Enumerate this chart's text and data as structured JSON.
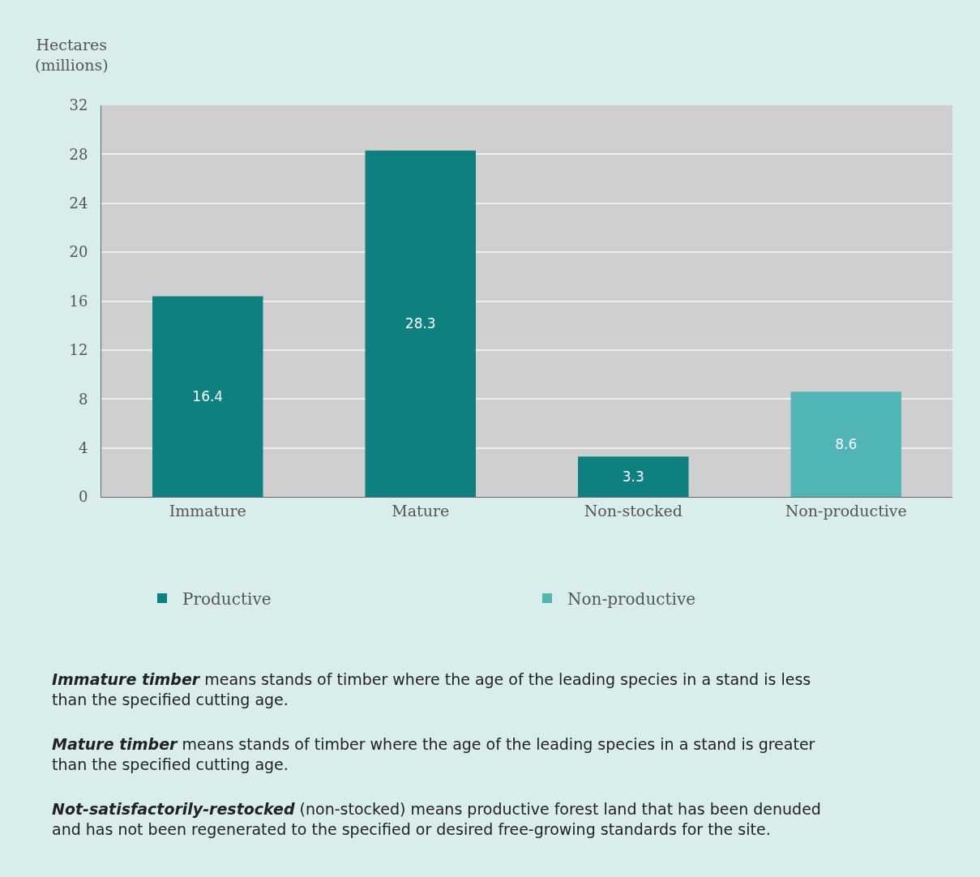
{
  "chart_data": {
    "type": "bar",
    "ylabel": "Hectares\n(millions)",
    "categories": [
      "Immature",
      "Mature",
      "Non-stocked",
      "Non-productive"
    ],
    "series": [
      {
        "name": "Productive",
        "color": "#0f8080",
        "values": [
          16.4,
          28.3,
          3.3,
          null
        ]
      },
      {
        "name": "Non-productive",
        "color": "#52b5b5",
        "values": [
          null,
          null,
          null,
          8.6
        ]
      }
    ],
    "stacked": true,
    "data_labels": true,
    "ylim": [
      0,
      32
    ],
    "yticks": [
      0,
      4,
      8,
      12,
      16,
      20,
      24,
      28,
      32
    ],
    "grid": "y",
    "legend": "bottom",
    "annotations": [
      "Immature timber",
      "means stands of timber where the age of the leading species in a stand is less than the specified cutting age.",
      "Mature timber",
      "means stands of timber where the age of the leading species in a stand is greater than the specified cutting age.",
      "Not-satisfactorily-restocked",
      "(non-stocked) means productive forest land that has been denuded and has not been regenerated to the specified or desired free-growing standards for the site."
    ]
  }
}
